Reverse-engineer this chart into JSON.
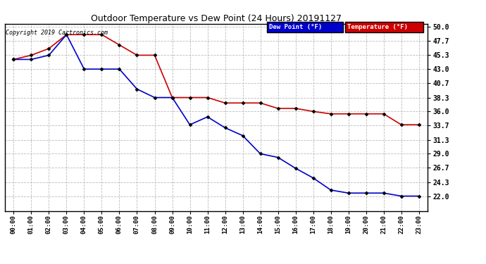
{
  "title": "Outdoor Temperature vs Dew Point (24 Hours) 20191127",
  "copyright": "Copyright 2019 Cartronics.com",
  "x_labels": [
    "00:00",
    "01:00",
    "02:00",
    "03:00",
    "04:00",
    "05:00",
    "06:00",
    "07:00",
    "08:00",
    "09:00",
    "10:00",
    "11:00",
    "12:00",
    "13:00",
    "14:00",
    "15:00",
    "16:00",
    "17:00",
    "18:00",
    "19:00",
    "20:00",
    "21:00",
    "22:00",
    "23:00"
  ],
  "temperature": [
    44.6,
    45.3,
    46.4,
    48.7,
    48.7,
    48.7,
    47.0,
    45.3,
    45.3,
    38.3,
    38.3,
    38.3,
    37.4,
    37.4,
    37.4,
    36.5,
    36.5,
    36.0,
    35.6,
    35.6,
    35.6,
    35.6,
    33.8,
    33.8
  ],
  "dew_point": [
    44.6,
    44.6,
    45.3,
    48.7,
    43.0,
    43.0,
    43.0,
    39.7,
    38.3,
    38.3,
    33.8,
    35.1,
    33.3,
    32.0,
    29.0,
    28.4,
    26.6,
    25.0,
    23.0,
    22.5,
    22.5,
    22.5,
    22.0,
    22.0
  ],
  "temp_color": "#cc0000",
  "dew_color": "#0000cc",
  "ylim_min": 19.5,
  "ylim_max": 50.5,
  "yticks": [
    22.0,
    24.3,
    26.7,
    29.0,
    31.3,
    33.7,
    36.0,
    38.3,
    40.7,
    43.0,
    45.3,
    47.7,
    50.0
  ],
  "bg_color": "#ffffff",
  "grid_color": "#bbbbbb",
  "legend_dew_label": "Dew Point (°F)",
  "legend_temp_label": "Temperature (°F)",
  "marker": "D",
  "marker_size": 2.5,
  "line_width": 1.2
}
